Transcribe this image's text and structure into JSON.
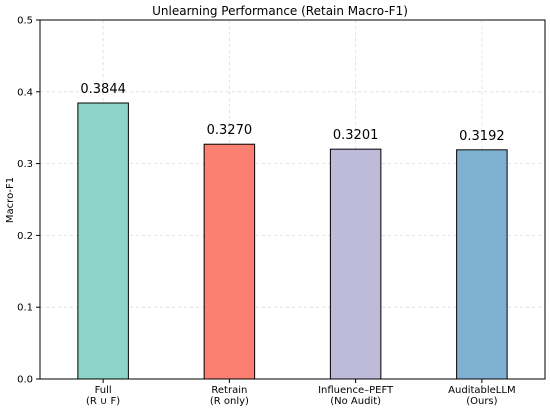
{
  "chart_data": {
    "type": "bar",
    "title": "Unlearning Performance (Retain Macro-F1)",
    "xlabel": "",
    "ylabel": "Macro-F1",
    "ylim": [
      0,
      0.5
    ],
    "yticks": [
      "0.0",
      "0.1",
      "0.2",
      "0.3",
      "0.4",
      "0.5"
    ],
    "grid": true,
    "categories": [
      [
        "Full",
        "(R ∪ F)"
      ],
      [
        "Retrain",
        "(R only)"
      ],
      [
        "Influence–PEFT",
        "(No Audit)"
      ],
      [
        "AuditableLLM",
        "(Ours)"
      ]
    ],
    "values": [
      0.3844,
      0.327,
      0.3201,
      0.3192
    ],
    "value_labels": [
      "0.3844",
      "0.3270",
      "0.3201",
      "0.3192"
    ],
    "colors": [
      "#8dd3c7",
      "#fb8072",
      "#bebada",
      "#80b1d3"
    ]
  }
}
